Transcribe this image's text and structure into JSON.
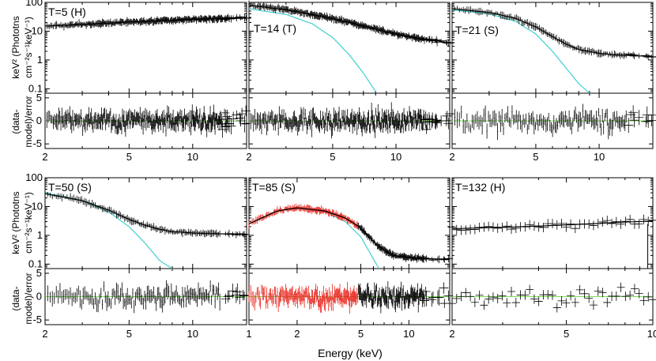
{
  "figure": {
    "xlabel": "Energy (keV)",
    "ylabel_top_line1": "keV² (Phototns",
    "ylabel_top_line2": "cm⁻²s⁻¹keV⁻¹)",
    "ylabel_bottom_line1": "(data-",
    "ylabel_bottom_line2": "model)/error"
  },
  "colors": {
    "data": "#000000",
    "data_red": "#e8231b",
    "model_cyan": "#40d0d0",
    "zero_line": "#7ddc5a",
    "axis": "#000000"
  },
  "chart_data": [
    {
      "type": "line",
      "title": "T=5 (H)",
      "has_cyan_model": false,
      "xlim": [
        2,
        18
      ],
      "ylim": [
        0.07,
        100
      ],
      "res_ylim": [
        -6,
        6
      ],
      "x_ticks": [
        2,
        5,
        10
      ],
      "y_ticks": [
        0.1,
        1,
        10,
        100
      ],
      "res_ticks": [
        -5,
        0,
        5
      ],
      "total_model": {
        "x": [
          2,
          3,
          4,
          5,
          6,
          8,
          10,
          13,
          18
        ],
        "y": [
          15,
          17,
          19,
          21,
          22,
          24,
          26,
          27,
          29
        ]
      }
    },
    {
      "type": "line",
      "title": "T=14 (T)",
      "has_cyan_model": true,
      "xlim": [
        2,
        18
      ],
      "ylim": [
        0.07,
        100
      ],
      "res_ylim": [
        -6,
        6
      ],
      "x_ticks": [
        2,
        5,
        10
      ],
      "y_ticks": [
        0.1,
        1,
        10,
        100
      ],
      "res_ticks": [
        -5,
        0,
        5
      ],
      "total_model": {
        "x": [
          2,
          3,
          4,
          5,
          6,
          8,
          10,
          13,
          18
        ],
        "y": [
          80,
          55,
          38,
          27,
          20,
          12,
          8,
          5.5,
          4
        ]
      },
      "cyan_model": {
        "x": [
          2,
          3,
          4,
          5,
          6,
          7,
          8
        ],
        "y": [
          60,
          38,
          18,
          6,
          1.5,
          0.35,
          0.08
        ]
      }
    },
    {
      "type": "line",
      "title": "T=21 (S)",
      "has_cyan_model": true,
      "xlim": [
        2,
        18
      ],
      "ylim": [
        0.07,
        100
      ],
      "res_ylim": [
        -6,
        6
      ],
      "x_ticks": [
        2,
        5,
        10
      ],
      "y_ticks": [
        0.1,
        1,
        10,
        100
      ],
      "res_ticks": [
        -5,
        0,
        5
      ],
      "total_model": {
        "x": [
          2,
          3,
          4,
          5,
          6,
          7,
          8,
          10,
          12,
          15,
          18
        ],
        "y": [
          60,
          45,
          28,
          14,
          6.5,
          3.5,
          2.3,
          1.7,
          1.5,
          1.4,
          1.3
        ]
      },
      "cyan_model": {
        "x": [
          2,
          3,
          4,
          5,
          6,
          7,
          8,
          9
        ],
        "y": [
          55,
          40,
          22,
          8,
          2,
          0.5,
          0.15,
          0.07
        ]
      }
    },
    {
      "type": "line",
      "title": "T=50 (S)",
      "has_cyan_model": true,
      "xlim": [
        2,
        18
      ],
      "ylim": [
        0.07,
        100
      ],
      "res_ylim": [
        -6,
        6
      ],
      "x_ticks": [
        2,
        5,
        10
      ],
      "y_ticks": [
        0.1,
        1,
        10,
        100
      ],
      "res_ticks": [
        -5,
        0,
        5
      ],
      "total_model": {
        "x": [
          2,
          3,
          4,
          5,
          6,
          7,
          8,
          10,
          12,
          15,
          18
        ],
        "y": [
          28,
          16,
          7.5,
          3.6,
          2.2,
          1.6,
          1.35,
          1.2,
          1.15,
          1.1,
          1.1
        ]
      },
      "cyan_model": {
        "x": [
          2,
          3,
          4,
          5,
          6,
          7,
          8
        ],
        "y": [
          30,
          16,
          6.5,
          2,
          0.5,
          0.13,
          0.07
        ]
      }
    },
    {
      "type": "line",
      "title": "T=85 (S)",
      "has_cyan_model": true,
      "has_red_data": true,
      "xlim": [
        1,
        18
      ],
      "ylim": [
        0.07,
        100
      ],
      "res_ylim": [
        -6,
        6
      ],
      "x_ticks": [
        1,
        2,
        5,
        10
      ],
      "y_ticks": [
        0.1,
        1,
        10,
        100
      ],
      "res_ticks": [
        -5,
        0,
        5
      ],
      "total_model": {
        "x": [
          1,
          1.5,
          2,
          3,
          4,
          5,
          6,
          7,
          8,
          10,
          13,
          18
        ],
        "y": [
          2.5,
          7,
          9,
          7,
          4,
          1.8,
          0.6,
          0.3,
          0.2,
          0.17,
          0.15,
          0.15
        ]
      },
      "cyan_model": {
        "x": [
          1,
          1.5,
          2,
          3,
          4,
          5,
          6,
          6.5
        ],
        "y": [
          2.5,
          7,
          9,
          6.5,
          3,
          0.9,
          0.15,
          0.07
        ]
      }
    },
    {
      "type": "line",
      "title": "T=132 (H)",
      "has_cyan_model": false,
      "xlim": [
        2,
        10
      ],
      "ylim": [
        0.07,
        100
      ],
      "res_ylim": [
        -6,
        6
      ],
      "x_ticks": [
        2,
        5,
        10
      ],
      "y_ticks": [
        0.1,
        1,
        10,
        100
      ],
      "res_ticks": [
        -5,
        0,
        5
      ],
      "total_model": {
        "x": [
          2,
          3,
          4,
          5,
          6,
          7,
          8,
          9,
          10
        ],
        "y": [
          1.7,
          1.9,
          2.1,
          2.3,
          2.5,
          2.7,
          2.9,
          3.0,
          3.2
        ]
      }
    }
  ]
}
